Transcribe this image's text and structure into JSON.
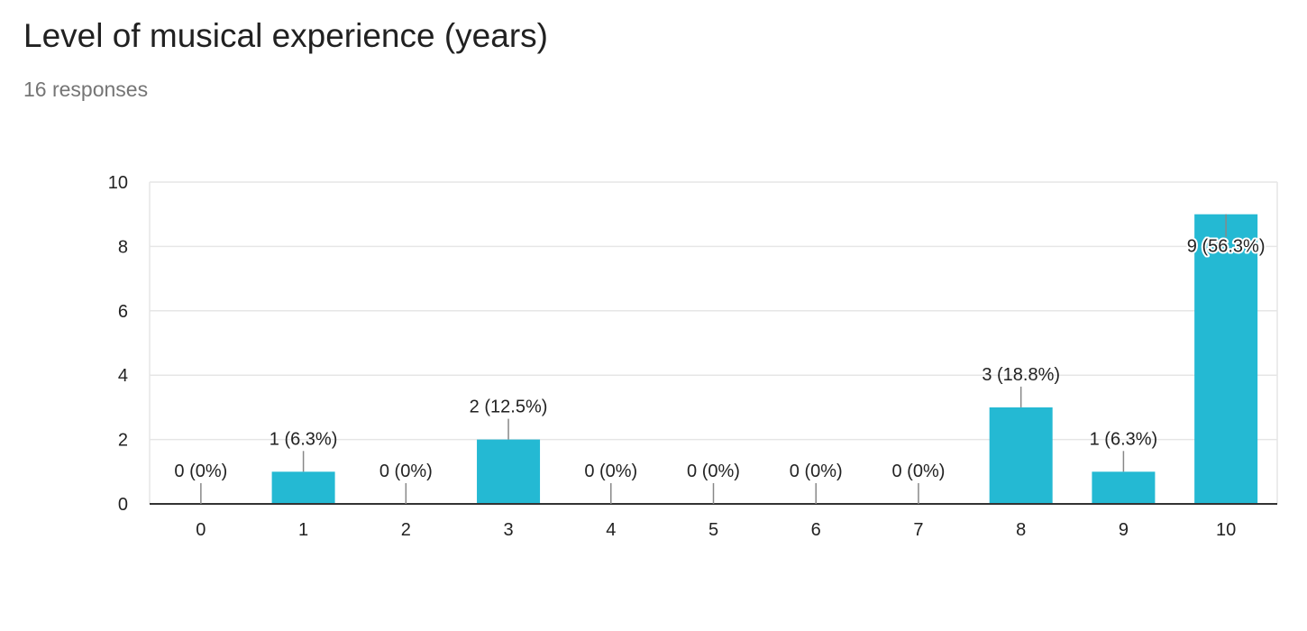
{
  "header": {
    "title": "Level of musical experience (years)",
    "responses": "16 responses"
  },
  "colors": {
    "bar": "#24B9D3",
    "grid": "#E6E6E6",
    "axis": "#333333"
  },
  "chart_data": {
    "type": "bar",
    "categories": [
      "0",
      "1",
      "2",
      "3",
      "4",
      "5",
      "6",
      "7",
      "8",
      "9",
      "10"
    ],
    "values": [
      0,
      1,
      0,
      2,
      0,
      0,
      0,
      0,
      3,
      1,
      9
    ],
    "data_labels": [
      "0 (0%)",
      "1 (6.3%)",
      "0 (0%)",
      "2 (12.5%)",
      "0 (0%)",
      "0 (0%)",
      "0 (0%)",
      "0 (0%)",
      "3 (18.8%)",
      "1 (6.3%)",
      "9 (56.3%)"
    ],
    "title": "Level of musical experience (years)",
    "xlabel": "",
    "ylabel": "",
    "ylim": [
      0,
      10
    ],
    "yticks": [
      0,
      2,
      4,
      6,
      8,
      10
    ],
    "grid": true,
    "legend": "none"
  }
}
